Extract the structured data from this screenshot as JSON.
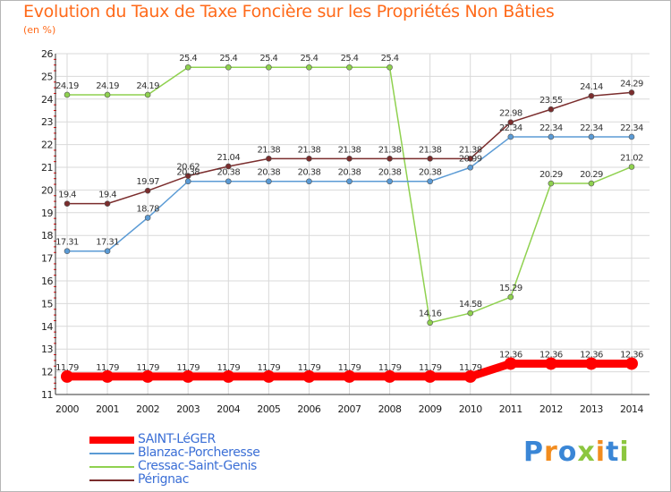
{
  "header": {
    "title": "Evolution du Taux de Taxe Foncière sur les Propriétés Non Bâties",
    "subtitle": "(en %)"
  },
  "logo": {
    "text": "Proxiti"
  },
  "chart_data": {
    "type": "line",
    "title": "Evolution du Taux de Taxe Foncière sur les Propriétés Non Bâties",
    "ylabel": "(en %)",
    "xlabel": "",
    "categories": [
      "2000",
      "2001",
      "2002",
      "2003",
      "2004",
      "2005",
      "2006",
      "2007",
      "2008",
      "2009",
      "2010",
      "2011",
      "2012",
      "2013",
      "2014"
    ],
    "ylim": [
      11,
      26
    ],
    "yticks": [
      11,
      12,
      13,
      14,
      15,
      16,
      17,
      18,
      19,
      20,
      21,
      22,
      23,
      24,
      25,
      26
    ],
    "grid": true,
    "legend_position": "bottom-left",
    "series": [
      {
        "name": "SAINT-LéGER",
        "color": "#ff0000",
        "values": [
          11.79,
          11.79,
          11.79,
          11.79,
          11.79,
          11.79,
          11.79,
          11.79,
          11.79,
          11.79,
          11.79,
          12.36,
          12.36,
          12.36,
          12.36
        ],
        "labels": [
          "11.79",
          "11.79",
          "11.79",
          "11.79",
          "11.79",
          "11.79",
          "11.79",
          "11.79",
          "11.79",
          "11.79",
          "11.79",
          "12.36",
          "12.36",
          "12.36",
          "12.36"
        ]
      },
      {
        "name": "Blanzac-Porcheresse",
        "color": "#5b9bd5",
        "values": [
          17.31,
          17.31,
          18.78,
          20.38,
          20.38,
          20.38,
          20.38,
          20.38,
          20.38,
          20.38,
          20.99,
          22.34,
          22.34,
          22.34,
          22.34
        ],
        "labels": [
          "17.31",
          "17.31",
          "18.78",
          "20.38",
          "20.38",
          "20.38",
          "20.38",
          "20.38",
          "20.38",
          "20.38",
          "20.99",
          "22.34",
          "22.34",
          "22.34",
          "22.34"
        ]
      },
      {
        "name": "Cressac-Saint-Genis",
        "color": "#8fd14f",
        "values": [
          24.19,
          24.19,
          24.19,
          25.4,
          25.4,
          25.4,
          25.4,
          25.4,
          25.4,
          14.16,
          14.58,
          15.29,
          20.29,
          20.29,
          21.02
        ],
        "labels": [
          "24.19",
          "24.19",
          "24.19",
          "25.4",
          "25.4",
          "25.4",
          "25.4",
          "25.4",
          "25.4",
          "14.16",
          "14.58",
          "15.29",
          "20.29",
          "20.29",
          "21.02"
        ]
      },
      {
        "name": "Pérignac",
        "color": "#7b2d2d",
        "values": [
          19.4,
          19.4,
          19.97,
          20.62,
          21.04,
          21.38,
          21.38,
          21.38,
          21.38,
          21.38,
          21.38,
          22.98,
          23.55,
          24.14,
          24.29
        ],
        "labels": [
          "19.4",
          "19.4",
          "19.97",
          "20.62",
          "21.04",
          "21.38",
          "21.38",
          "21.38",
          "21.38",
          "21.38",
          "21.38",
          "22.98",
          "23.55",
          "24.14",
          "24.29"
        ]
      }
    ]
  }
}
